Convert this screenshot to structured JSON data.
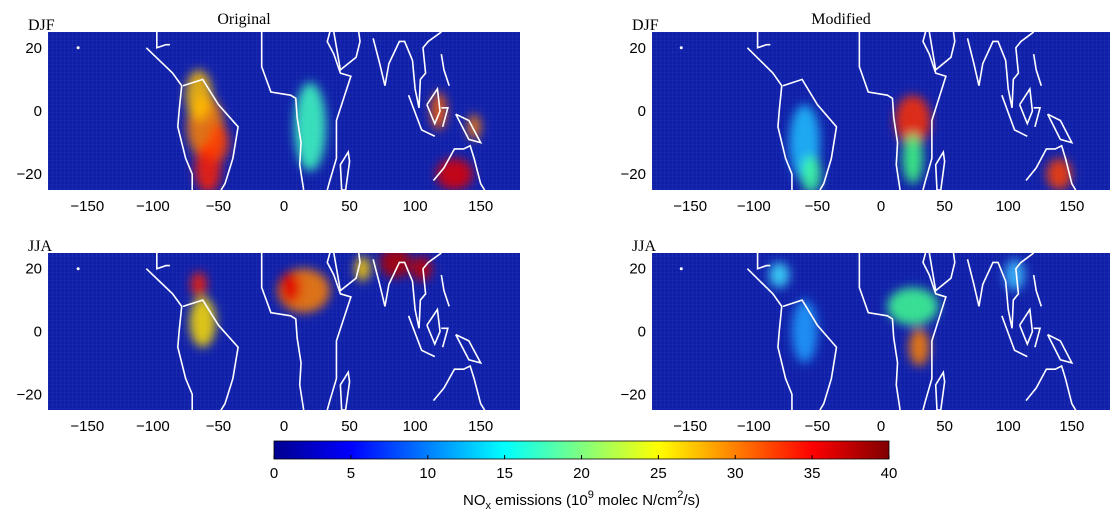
{
  "panels": [
    {
      "season": "DJF",
      "title": "Original"
    },
    {
      "season": "DJF",
      "title": "Modified"
    },
    {
      "season": "JJA"
    },
    {
      "season": "JJA"
    }
  ],
  "axes": {
    "xlim": [
      -180,
      180
    ],
    "xticks": [
      {
        "value": -150,
        "label": "−150"
      },
      {
        "value": -100,
        "label": "−100"
      },
      {
        "value": -50,
        "label": "−50"
      },
      0,
      50,
      100,
      150
    ],
    "ylim": [
      -25,
      25
    ],
    "yticks": [
      20,
      0,
      {
        "value": -20,
        "label": "−20"
      }
    ]
  },
  "colorbar": {
    "lim": [
      0,
      40
    ],
    "ticks": [
      0,
      5,
      10,
      15,
      20,
      25,
      30,
      35,
      40
    ],
    "label": [
      "NO",
      "x",
      " emissions (10",
      "9",
      " molec N/cm",
      "2",
      "/s)"
    ]
  }
}
